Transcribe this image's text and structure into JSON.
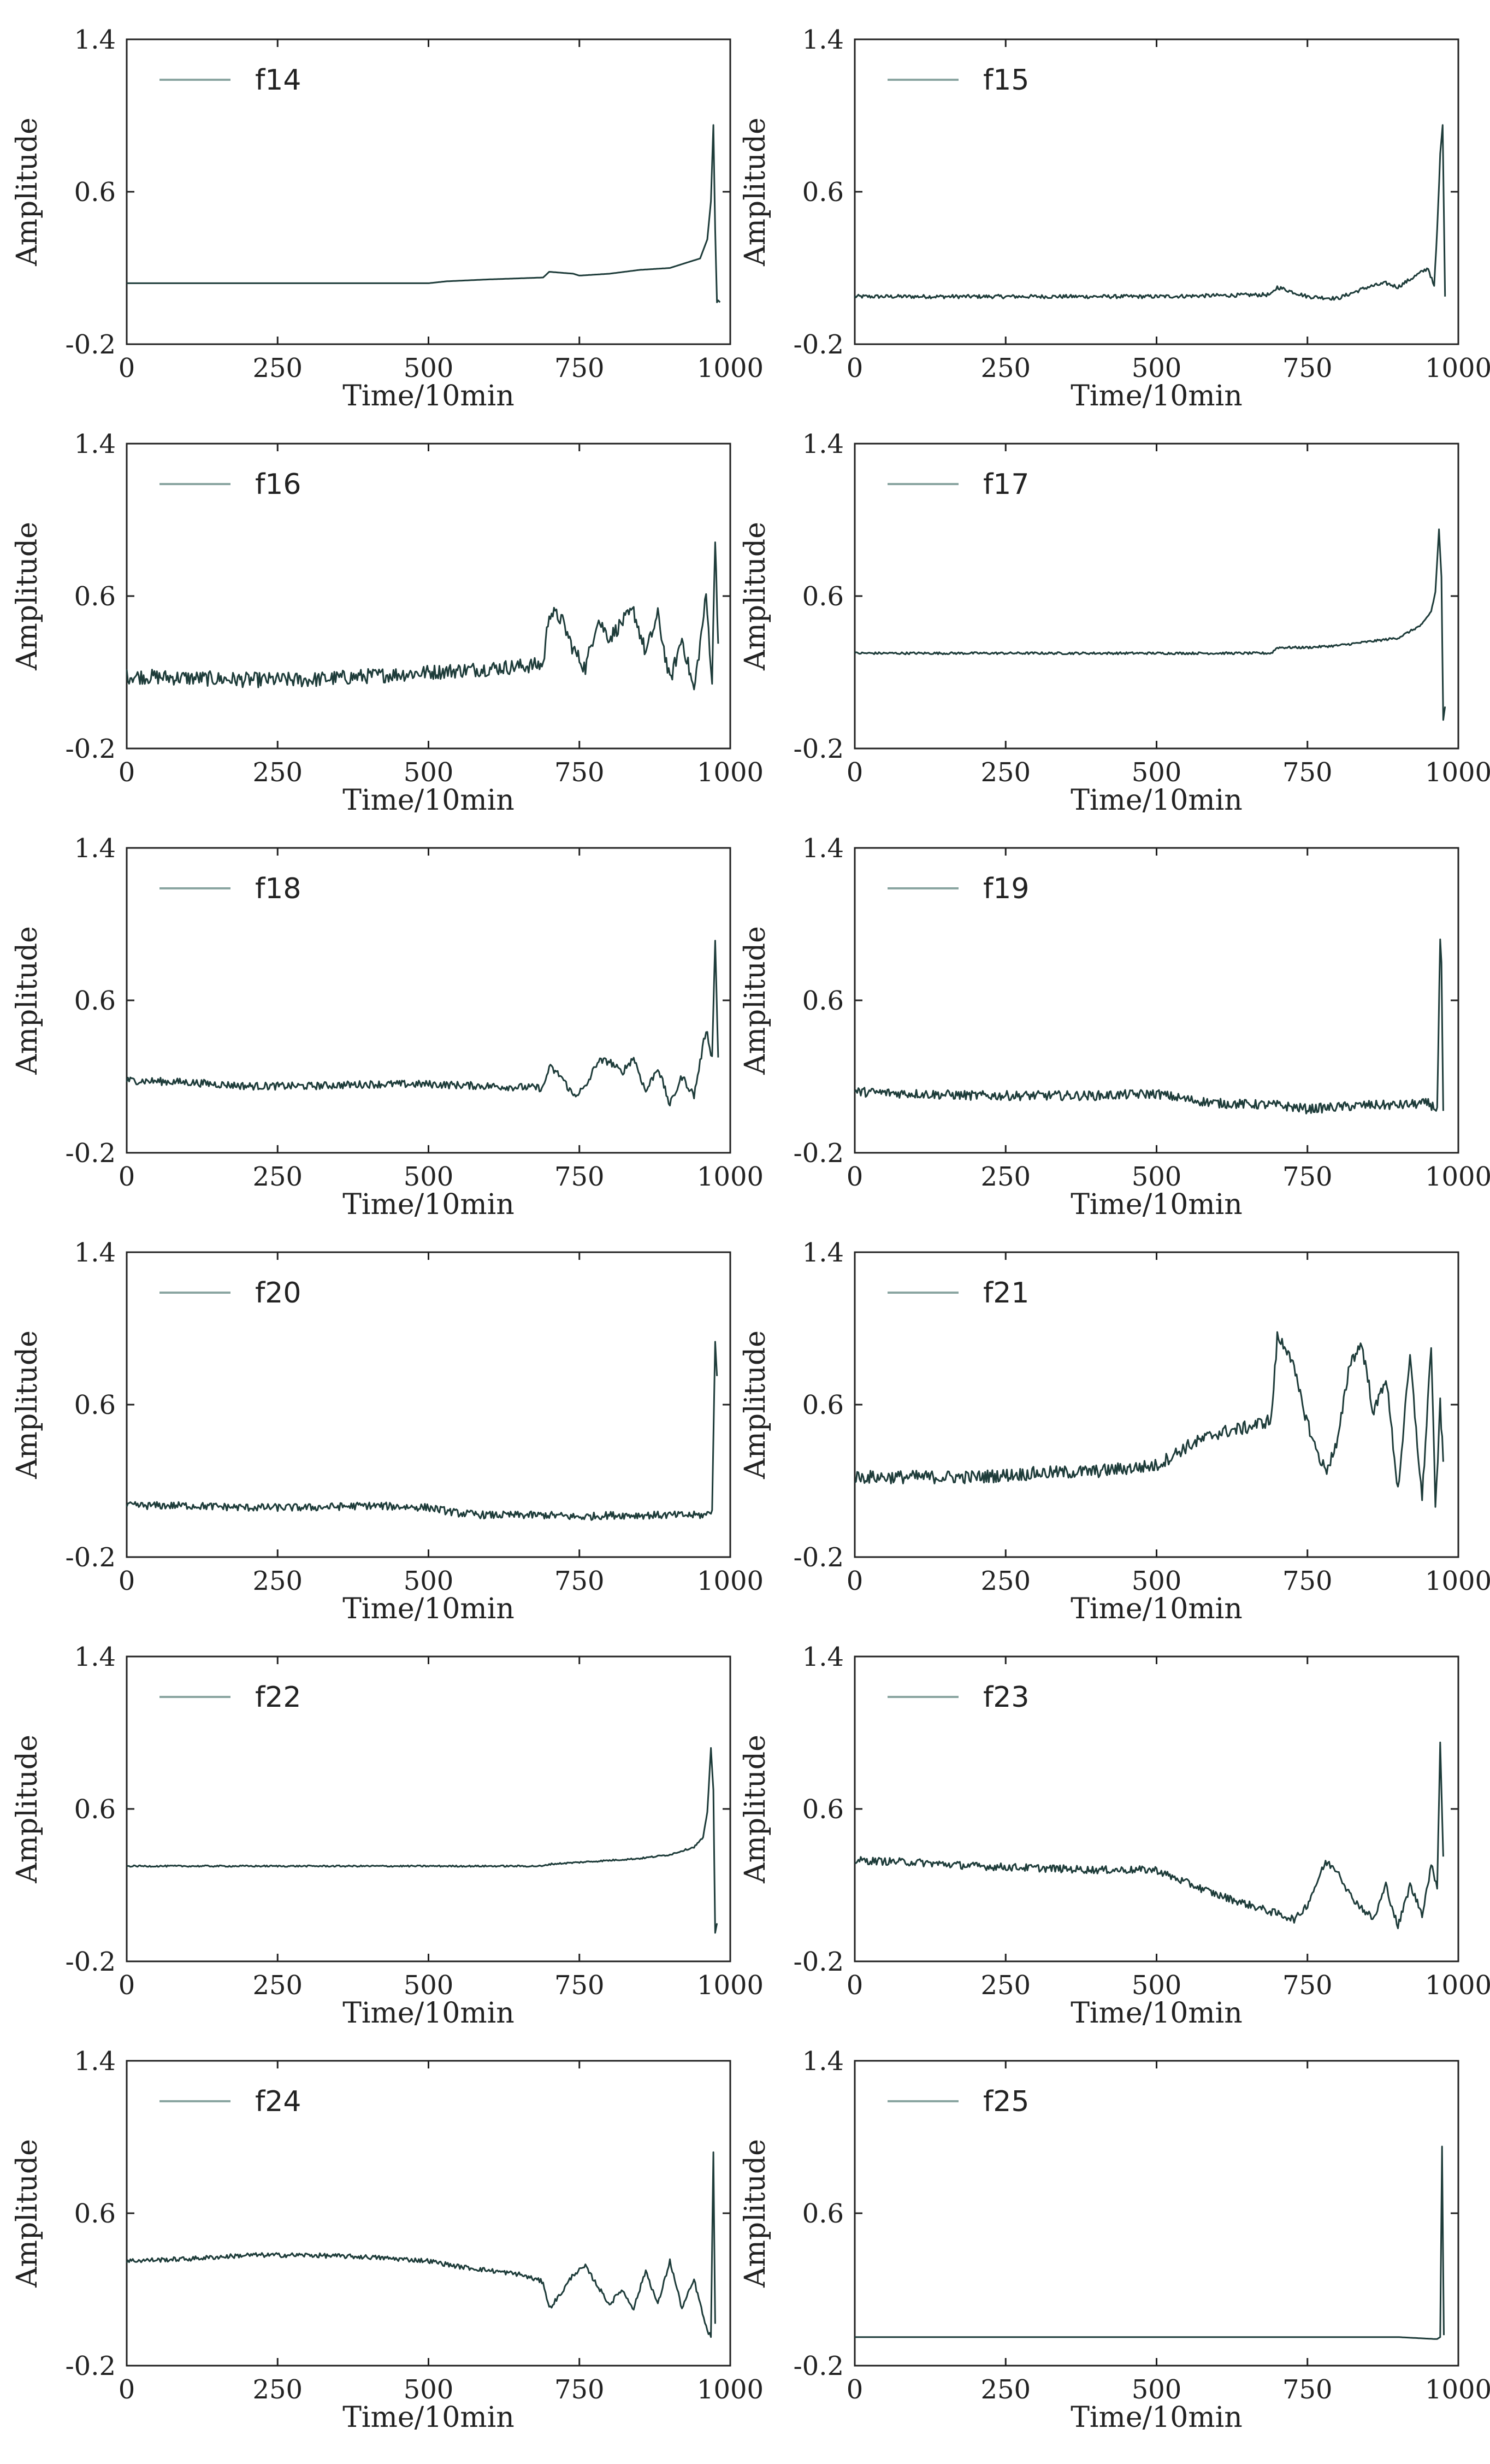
{
  "figure": {
    "xlabel": "Time/10min",
    "ylabel": "Amplitude"
  },
  "colors": {
    "line": "#1e3c3a",
    "light": "#8aa5a1",
    "axis": "#222222",
    "background": "#ffffff"
  },
  "chart_data": [
    {
      "type": "line",
      "title": "",
      "legend": "f14",
      "xlabel": "Time/10min",
      "ylabel": "Amplitude",
      "xlim": [
        0,
        1000
      ],
      "ylim": [
        -0.2,
        1.4
      ],
      "xticks": [
        "0",
        "250",
        "500",
        "750",
        "1000"
      ],
      "yticks": [
        "-0.2",
        "0.6",
        "1.4"
      ],
      "grid": false,
      "legend_position": "top-left",
      "x": [
        0,
        250,
        500,
        530,
        600,
        690,
        700,
        740,
        750,
        800,
        850,
        900,
        950,
        962,
        968,
        972,
        975,
        978,
        980,
        983
      ],
      "y": [
        0.12,
        0.12,
        0.12,
        0.13,
        0.14,
        0.15,
        0.18,
        0.17,
        0.16,
        0.17,
        0.19,
        0.2,
        0.25,
        0.35,
        0.55,
        0.95,
        0.4,
        0.02,
        0.03,
        0.02
      ]
    },
    {
      "type": "line",
      "title": "",
      "legend": "f15",
      "xlabel": "Time/10min",
      "ylabel": "Amplitude",
      "xlim": [
        0,
        1000
      ],
      "ylim": [
        -0.2,
        1.4
      ],
      "xticks": [
        "0",
        "250",
        "500",
        "750",
        "1000"
      ],
      "yticks": [
        "-0.2",
        "0.6",
        "1.4"
      ],
      "grid": false,
      "legend_position": "top-left",
      "x": [
        0,
        250,
        500,
        690,
        700,
        720,
        750,
        800,
        850,
        880,
        900,
        930,
        950,
        960,
        965,
        970,
        974,
        978
      ],
      "y": [
        0.05,
        0.05,
        0.05,
        0.06,
        0.1,
        0.08,
        0.05,
        0.04,
        0.1,
        0.12,
        0.1,
        0.16,
        0.2,
        0.1,
        0.4,
        0.8,
        0.95,
        0.05
      ],
      "noise": 0.01
    },
    {
      "type": "line",
      "title": "",
      "legend": "f16",
      "xlabel": "Time/10min",
      "ylabel": "Amplitude",
      "xlim": [
        0,
        1000
      ],
      "ylim": [
        -0.2,
        1.4
      ],
      "xticks": [
        "0",
        "250",
        "500",
        "750",
        "1000"
      ],
      "yticks": [
        "-0.2",
        "0.6",
        "1.4"
      ],
      "grid": false,
      "legend_position": "top-left",
      "x": [
        0,
        100,
        200,
        300,
        400,
        500,
        600,
        690,
        700,
        720,
        740,
        760,
        780,
        800,
        820,
        840,
        860,
        880,
        900,
        920,
        940,
        960,
        970,
        975,
        980
      ],
      "y": [
        0.18,
        0.17,
        0.16,
        0.16,
        0.18,
        0.2,
        0.22,
        0.24,
        0.52,
        0.48,
        0.32,
        0.22,
        0.48,
        0.38,
        0.46,
        0.52,
        0.3,
        0.5,
        0.15,
        0.38,
        0.1,
        0.6,
        0.15,
        0.92,
        0.35
      ],
      "noise": 0.04
    },
    {
      "type": "line",
      "title": "",
      "legend": "f17",
      "xlabel": "Time/10min",
      "ylabel": "Amplitude",
      "xlim": [
        0,
        1000
      ],
      "ylim": [
        -0.2,
        1.4
      ],
      "xticks": [
        "0",
        "250",
        "500",
        "750",
        "1000"
      ],
      "yticks": [
        "-0.2",
        "0.6",
        "1.4"
      ],
      "grid": false,
      "legend_position": "top-left",
      "x": [
        0,
        250,
        500,
        690,
        700,
        750,
        800,
        850,
        900,
        940,
        955,
        962,
        968,
        972,
        975,
        978
      ],
      "y": [
        0.3,
        0.3,
        0.3,
        0.3,
        0.33,
        0.33,
        0.34,
        0.36,
        0.38,
        0.45,
        0.52,
        0.62,
        0.95,
        0.7,
        -0.05,
        0.02
      ],
      "noise": 0.006
    },
    {
      "type": "line",
      "title": "",
      "legend": "f18",
      "xlabel": "Time/10min",
      "ylabel": "Amplitude",
      "xlim": [
        0,
        1000
      ],
      "ylim": [
        -0.2,
        1.4
      ],
      "xticks": [
        "0",
        "250",
        "500",
        "750",
        "1000"
      ],
      "yticks": [
        "-0.2",
        "0.6",
        "1.4"
      ],
      "grid": false,
      "legend_position": "top-left",
      "x": [
        0,
        100,
        200,
        300,
        400,
        500,
        600,
        690,
        700,
        720,
        740,
        760,
        780,
        800,
        820,
        840,
        860,
        880,
        900,
        920,
        940,
        960,
        970,
        975,
        980
      ],
      "y": [
        0.18,
        0.17,
        0.15,
        0.15,
        0.16,
        0.16,
        0.15,
        0.14,
        0.25,
        0.2,
        0.1,
        0.14,
        0.28,
        0.28,
        0.22,
        0.3,
        0.12,
        0.25,
        0.05,
        0.2,
        0.1,
        0.45,
        0.3,
        0.92,
        0.3
      ],
      "noise": 0.02
    },
    {
      "type": "line",
      "title": "",
      "legend": "f19",
      "xlabel": "Time/10min",
      "ylabel": "Amplitude",
      "xlim": [
        0,
        1000
      ],
      "ylim": [
        -0.2,
        1.4
      ],
      "xticks": [
        "0",
        "250",
        "500",
        "750",
        "1000"
      ],
      "yticks": [
        "-0.2",
        "0.6",
        "1.4"
      ],
      "grid": false,
      "legend_position": "top-left",
      "x": [
        0,
        100,
        200,
        300,
        400,
        500,
        550,
        600,
        700,
        750,
        800,
        850,
        900,
        950,
        965,
        970,
        972,
        975
      ],
      "y": [
        0.12,
        0.11,
        0.1,
        0.1,
        0.1,
        0.11,
        0.08,
        0.06,
        0.05,
        0.03,
        0.04,
        0.05,
        0.05,
        0.06,
        0.03,
        0.92,
        0.8,
        0.02
      ],
      "noise": 0.025
    },
    {
      "type": "line",
      "title": "",
      "legend": "f20",
      "xlabel": "Time/10min",
      "ylabel": "Amplitude",
      "xlim": [
        0,
        1000
      ],
      "ylim": [
        -0.2,
        1.4
      ],
      "xticks": [
        "0",
        "250",
        "500",
        "750",
        "1000"
      ],
      "yticks": [
        "-0.2",
        "0.6",
        "1.4"
      ],
      "grid": false,
      "legend_position": "top-left",
      "x": [
        0,
        100,
        200,
        300,
        400,
        500,
        550,
        600,
        700,
        750,
        800,
        900,
        960,
        970,
        975,
        978
      ],
      "y": [
        0.07,
        0.07,
        0.06,
        0.06,
        0.07,
        0.06,
        0.03,
        0.02,
        0.02,
        0.01,
        0.02,
        0.02,
        0.02,
        0.05,
        0.93,
        0.75
      ],
      "noise": 0.02
    },
    {
      "type": "line",
      "title": "",
      "legend": "f21",
      "xlabel": "Time/10min",
      "ylabel": "Amplitude",
      "xlim": [
        0,
        1000
      ],
      "ylim": [
        -0.2,
        1.4
      ],
      "xticks": [
        "0",
        "250",
        "500",
        "750",
        "1000"
      ],
      "yticks": [
        "-0.2",
        "0.6",
        "1.4"
      ],
      "grid": false,
      "legend_position": "top-left",
      "x": [
        0,
        100,
        200,
        300,
        400,
        500,
        550,
        600,
        650,
        690,
        700,
        720,
        740,
        760,
        780,
        800,
        820,
        840,
        860,
        880,
        900,
        920,
        940,
        955,
        962,
        970,
        975
      ],
      "y": [
        0.22,
        0.22,
        0.22,
        0.24,
        0.25,
        0.28,
        0.38,
        0.45,
        0.48,
        0.52,
        0.95,
        0.88,
        0.62,
        0.4,
        0.25,
        0.4,
        0.82,
        0.92,
        0.55,
        0.75,
        0.15,
        0.85,
        0.1,
        0.92,
        0.05,
        0.6,
        0.3
      ],
      "noise": 0.035
    },
    {
      "type": "line",
      "title": "",
      "legend": "f22",
      "xlabel": "Time/10min",
      "ylabel": "Amplitude",
      "xlim": [
        0,
        1000
      ],
      "ylim": [
        -0.2,
        1.4
      ],
      "xticks": [
        "0",
        "250",
        "500",
        "750",
        "1000"
      ],
      "yticks": [
        "-0.2",
        "0.6",
        "1.4"
      ],
      "grid": false,
      "legend_position": "top-left",
      "x": [
        0,
        250,
        500,
        690,
        700,
        750,
        800,
        850,
        900,
        940,
        955,
        962,
        968,
        972,
        975,
        978
      ],
      "y": [
        0.3,
        0.3,
        0.3,
        0.3,
        0.31,
        0.32,
        0.33,
        0.34,
        0.36,
        0.4,
        0.45,
        0.58,
        0.92,
        0.7,
        -0.05,
        0.0
      ],
      "noise": 0.004
    },
    {
      "type": "line",
      "title": "",
      "legend": "f23",
      "xlabel": "Time/10min",
      "ylabel": "Amplitude",
      "xlim": [
        0,
        1000
      ],
      "ylim": [
        -0.2,
        1.4
      ],
      "xticks": [
        "0",
        "250",
        "500",
        "750",
        "1000"
      ],
      "yticks": [
        "-0.2",
        "0.6",
        "1.4"
      ],
      "grid": false,
      "legend_position": "top-left",
      "x": [
        0,
        100,
        200,
        300,
        400,
        500,
        520,
        560,
        600,
        650,
        700,
        730,
        750,
        780,
        800,
        820,
        840,
        860,
        880,
        900,
        920,
        940,
        955,
        965,
        970,
        975
      ],
      "y": [
        0.33,
        0.32,
        0.3,
        0.29,
        0.28,
        0.28,
        0.25,
        0.2,
        0.15,
        0.1,
        0.05,
        0.02,
        0.1,
        0.32,
        0.28,
        0.15,
        0.08,
        0.02,
        0.2,
        -0.02,
        0.2,
        0.05,
        0.3,
        0.2,
        0.95,
        0.35
      ],
      "noise": 0.02
    },
    {
      "type": "line",
      "title": "",
      "legend": "f24",
      "xlabel": "Time/10min",
      "ylabel": "Amplitude",
      "xlim": [
        0,
        1000
      ],
      "ylim": [
        -0.2,
        1.4
      ],
      "xticks": [
        "0",
        "250",
        "500",
        "750",
        "1000"
      ],
      "yticks": [
        "-0.2",
        "0.6",
        "1.4"
      ],
      "grid": false,
      "legend_position": "top-left",
      "x": [
        0,
        100,
        200,
        300,
        400,
        500,
        550,
        600,
        650,
        690,
        700,
        720,
        740,
        760,
        780,
        800,
        820,
        840,
        860,
        880,
        900,
        920,
        940,
        960,
        968,
        972,
        975
      ],
      "y": [
        0.35,
        0.36,
        0.38,
        0.38,
        0.37,
        0.35,
        0.32,
        0.3,
        0.28,
        0.24,
        0.1,
        0.18,
        0.28,
        0.32,
        0.22,
        0.12,
        0.2,
        0.1,
        0.3,
        0.12,
        0.35,
        0.1,
        0.25,
        0.0,
        -0.05,
        0.92,
        0.02
      ],
      "noise": 0.012
    },
    {
      "type": "line",
      "title": "",
      "legend": "f25",
      "xlabel": "Time/10min",
      "ylabel": "Amplitude",
      "xlim": [
        0,
        1000
      ],
      "ylim": [
        -0.2,
        1.4
      ],
      "xticks": [
        "0",
        "250",
        "500",
        "750",
        "1000"
      ],
      "yticks": [
        "-0.2",
        "0.6",
        "1.4"
      ],
      "grid": false,
      "legend_position": "top-left",
      "x": [
        0,
        250,
        500,
        750,
        900,
        960,
        965,
        970,
        973,
        976
      ],
      "y": [
        -0.05,
        -0.05,
        -0.05,
        -0.05,
        -0.05,
        -0.06,
        -0.06,
        -0.05,
        0.95,
        -0.04
      ]
    }
  ]
}
